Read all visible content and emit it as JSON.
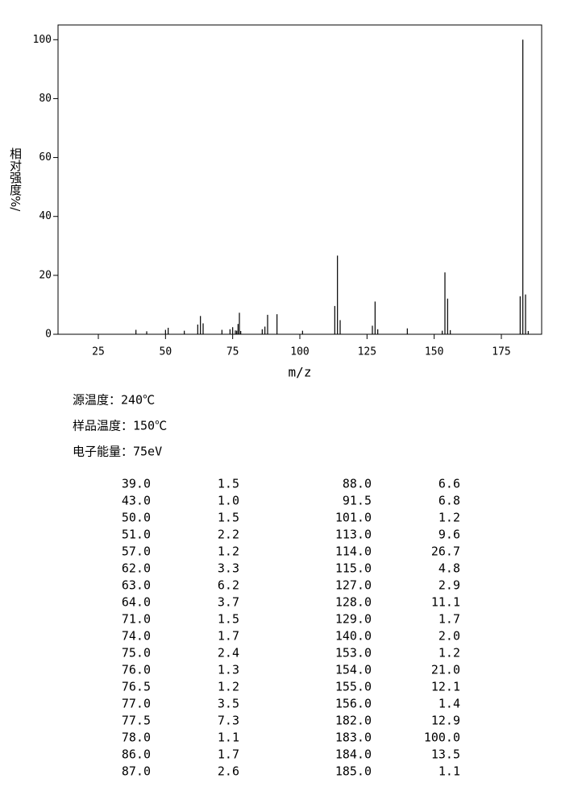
{
  "chart_data": {
    "type": "bar",
    "xlabel": "m/z",
    "ylabel": "相对强度%/",
    "x": [
      39,
      43,
      50,
      51,
      57,
      62,
      63,
      64,
      71,
      74,
      75,
      76,
      76.5,
      77,
      77.5,
      78,
      86,
      87,
      88,
      91.5,
      101,
      113,
      114,
      115,
      127,
      128,
      129,
      140,
      153,
      154,
      155,
      156,
      182,
      183,
      184,
      185
    ],
    "values": [
      1.5,
      1.0,
      1.5,
      2.2,
      1.2,
      3.3,
      6.2,
      3.7,
      1.5,
      1.7,
      2.4,
      1.3,
      1.2,
      3.5,
      7.3,
      1.1,
      1.7,
      2.6,
      6.6,
      6.8,
      1.2,
      9.6,
      26.7,
      4.8,
      2.9,
      11.1,
      1.7,
      2.0,
      1.2,
      21.0,
      12.1,
      1.4,
      12.9,
      100.0,
      13.5,
      1.1
    ],
    "color": "#000000",
    "xlim": [
      10,
      190
    ],
    "xticks": [
      25,
      50,
      75,
      100,
      125,
      150,
      175
    ],
    "ylim": [
      0,
      105
    ],
    "yticks": [
      0,
      20,
      40,
      60,
      80,
      100
    ]
  },
  "conditions": [
    "源温度：240℃",
    "样品温度：150℃",
    "电子能量：75eV"
  ],
  "table": {
    "rows": [
      [
        "39.0",
        "1.5",
        "88.0",
        "6.6"
      ],
      [
        "43.0",
        "1.0",
        "91.5",
        "6.8"
      ],
      [
        "50.0",
        "1.5",
        "101.0",
        "1.2"
      ],
      [
        "51.0",
        "2.2",
        "113.0",
        "9.6"
      ],
      [
        "57.0",
        "1.2",
        "114.0",
        "26.7"
      ],
      [
        "62.0",
        "3.3",
        "115.0",
        "4.8"
      ],
      [
        "63.0",
        "6.2",
        "127.0",
        "2.9"
      ],
      [
        "64.0",
        "3.7",
        "128.0",
        "11.1"
      ],
      [
        "71.0",
        "1.5",
        "129.0",
        "1.7"
      ],
      [
        "74.0",
        "1.7",
        "140.0",
        "2.0"
      ],
      [
        "75.0",
        "2.4",
        "153.0",
        "1.2"
      ],
      [
        "76.0",
        "1.3",
        "154.0",
        "21.0"
      ],
      [
        "76.5",
        "1.2",
        "155.0",
        "12.1"
      ],
      [
        "77.0",
        "3.5",
        "156.0",
        "1.4"
      ],
      [
        "77.5",
        "7.3",
        "182.0",
        "12.9"
      ],
      [
        "78.0",
        "1.1",
        "183.0",
        "100.0"
      ],
      [
        "86.0",
        "1.7",
        "184.0",
        "13.5"
      ],
      [
        "87.0",
        "2.6",
        "185.0",
        "1.1"
      ]
    ]
  }
}
